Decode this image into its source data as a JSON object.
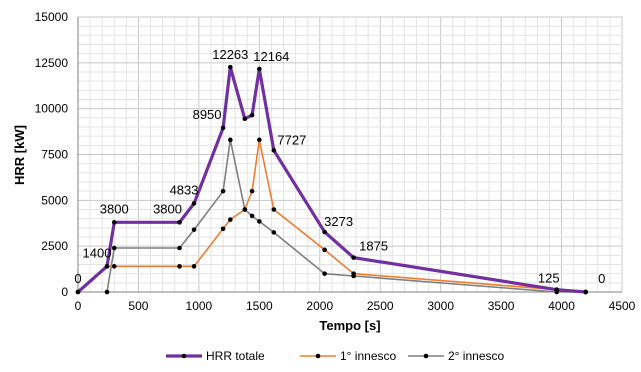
{
  "chart_data": {
    "type": "line",
    "xlabel": "Tempo [s]",
    "ylabel": "HRR [kW]",
    "xlim": [
      0,
      4500
    ],
    "ylim": [
      0,
      15000
    ],
    "x_ticks": [
      0,
      500,
      1000,
      1500,
      2000,
      2500,
      3000,
      3500,
      4000,
      4500
    ],
    "y_ticks": [
      0,
      2500,
      5000,
      7500,
      10000,
      12500,
      15000
    ],
    "grid": true,
    "legend_position": "bottom",
    "series": [
      {
        "name": "HRR totale",
        "color": "#7030a0",
        "points": [
          [
            0,
            0
          ],
          [
            240,
            1400
          ],
          [
            300,
            3800
          ],
          [
            840,
            3800
          ],
          [
            960,
            4833
          ],
          [
            1200,
            8950
          ],
          [
            1260,
            12263
          ],
          [
            1380,
            9450
          ],
          [
            1440,
            9650
          ],
          [
            1500,
            12164
          ],
          [
            1620,
            7727
          ],
          [
            2040,
            3273
          ],
          [
            2280,
            1875
          ],
          [
            3960,
            125
          ],
          [
            4200,
            0
          ]
        ]
      },
      {
        "name": "1° innesco",
        "color": "#ed7d31",
        "points": [
          [
            0,
            0
          ],
          [
            240,
            1400
          ],
          [
            300,
            1400
          ],
          [
            840,
            1400
          ],
          [
            960,
            1400
          ],
          [
            1200,
            3450
          ],
          [
            1260,
            3950
          ],
          [
            1380,
            4500
          ],
          [
            1440,
            5500
          ],
          [
            1500,
            8300
          ],
          [
            1620,
            4500
          ],
          [
            2040,
            2300
          ],
          [
            2280,
            1000
          ],
          [
            3960,
            125
          ],
          [
            4200,
            0
          ]
        ]
      },
      {
        "name": "2° innesco",
        "color": "#7f7f7f",
        "points": [
          [
            240,
            0
          ],
          [
            300,
            2400
          ],
          [
            840,
            2400
          ],
          [
            960,
            3400
          ],
          [
            1200,
            5500
          ],
          [
            1260,
            8300
          ],
          [
            1380,
            4500
          ],
          [
            1440,
            4150
          ],
          [
            1500,
            3850
          ],
          [
            1620,
            3250
          ],
          [
            2040,
            1000
          ],
          [
            2280,
            875
          ],
          [
            3960,
            0
          ],
          [
            4200,
            0
          ]
        ]
      }
    ],
    "data_labels": [
      {
        "text": "0",
        "x": 0,
        "y": 0
      },
      {
        "text": "1400",
        "x": 240,
        "y": 1400
      },
      {
        "text": "3800",
        "x": 300,
        "y": 3800
      },
      {
        "text": "3800",
        "x": 840,
        "y": 3800
      },
      {
        "text": "4833",
        "x": 960,
        "y": 4833
      },
      {
        "text": "8950",
        "x": 1200,
        "y": 8950
      },
      {
        "text": "12263",
        "x": 1260,
        "y": 12263
      },
      {
        "text": "12164",
        "x": 1500,
        "y": 12164
      },
      {
        "text": "7727",
        "x": 1620,
        "y": 7727
      },
      {
        "text": "3273",
        "x": 2040,
        "y": 3273
      },
      {
        "text": "1875",
        "x": 2280,
        "y": 1875
      },
      {
        "text": "125",
        "x": 3960,
        "y": 125
      },
      {
        "text": "0",
        "x": 4200,
        "y": 0
      }
    ]
  }
}
